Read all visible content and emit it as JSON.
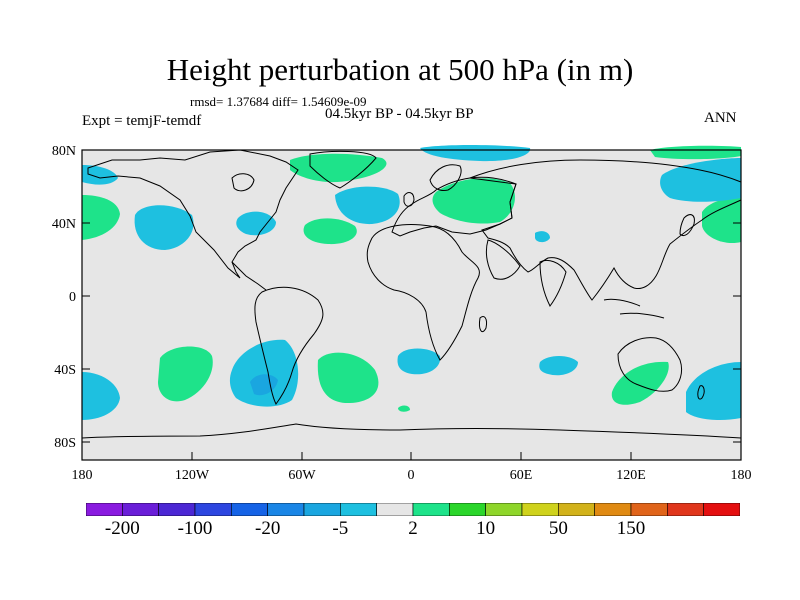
{
  "title": "Height perturbation at 500 hPa (in m)",
  "stats": "rmsd= 1.37684 diff= 1.54609e-09",
  "period": "04.5kyr BP - 04.5kyr BP",
  "experiment": "Expt = temjF-temdf",
  "season": "ANN",
  "lat_ticks": [
    "80N",
    "40N",
    "0",
    "40S",
    "80S"
  ],
  "lon_ticks": [
    "180",
    "120W",
    "60W",
    "0",
    "60E",
    "120E",
    "180"
  ],
  "colorbar": {
    "labels": [
      "-200",
      "-100",
      "-20",
      "-5",
      "2",
      "10",
      "50",
      "150"
    ],
    "colors": [
      "#8a1be0",
      "#6a1ed8",
      "#4c27d4",
      "#2d46e0",
      "#1663e6",
      "#1a86e6",
      "#1aa6e0",
      "#1ec0e0",
      "#e6e6e6",
      "#1ee38a",
      "#2bd62b",
      "#8fd62a",
      "#cfd21c",
      "#d2b21a",
      "#e08a12",
      "#e0641a",
      "#e0361c",
      "#e40f10"
    ]
  },
  "colors": {
    "land_background": "#e6e6e6",
    "positive": "#1ee38a",
    "negative": "#1ec0e0",
    "strong_negative": "#1aa6e0"
  }
}
